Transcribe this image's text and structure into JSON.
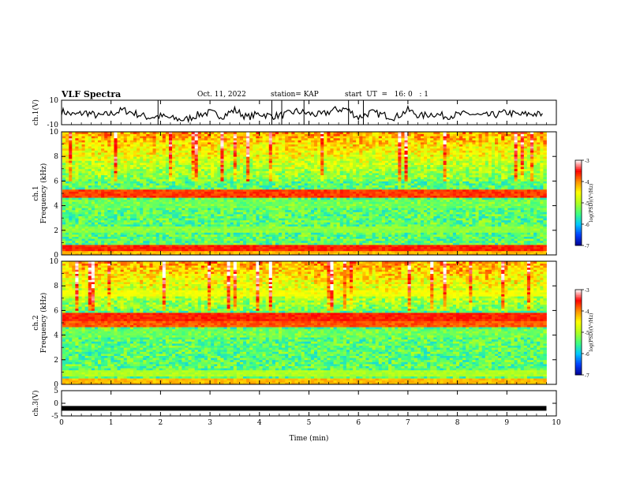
{
  "header": {
    "title": "VLF Spectra",
    "date": "Oct. 11, 2022",
    "station": "station= KAP",
    "start": "start  UT  =   16: 0   : 1"
  },
  "chart_data": [
    {
      "type": "line",
      "panel": "ch1-waveform",
      "ylabel": "ch.1(V)",
      "ylim": [
        -10,
        10
      ],
      "yticks": [
        "10",
        "-10"
      ],
      "xlim": [
        0,
        10
      ],
      "color": "#000000",
      "x": [
        0,
        0.25,
        0.5,
        0.75,
        1,
        1.25,
        1.5,
        1.75,
        2,
        2.25,
        2.5,
        2.75,
        3,
        3.25,
        3.5,
        3.75,
        4,
        4.25,
        4.5,
        4.75,
        5,
        5.25,
        5.5,
        5.75,
        6,
        6.25,
        6.5,
        6.75,
        7,
        7.25,
        7.5,
        7.75,
        8,
        8.25,
        8.5,
        8.75,
        9,
        9.25,
        9.5,
        9.75
      ],
      "y": [
        1,
        -2,
        0,
        -3,
        -1,
        2,
        -1,
        -4,
        -3,
        -5,
        -6,
        -2,
        0,
        -3,
        2,
        -4,
        -1,
        -3,
        -2,
        1,
        -1,
        -2,
        2,
        3,
        -4,
        0,
        -2,
        -4,
        2,
        -3,
        -1,
        -3,
        -2,
        -1,
        -3,
        -2,
        0,
        -2,
        -1,
        -2
      ]
    },
    {
      "type": "heatmap",
      "panel": "ch1-spectrogram",
      "ylabel": "ch.1\nFrequency (kHz)",
      "ylim": [
        0,
        10
      ],
      "yticks": [
        "0",
        "2",
        "4",
        "6",
        "8",
        "10"
      ],
      "xlim": [
        0,
        9.8
      ],
      "colorbar": {
        "label": "log(PSD)(V²/Hz)",
        "range": [
          -7,
          -3
        ],
        "ticks": [
          "-3",
          "-4",
          "-5",
          "-6",
          "-7"
        ],
        "colormap": [
          "#000090",
          "#0040ff",
          "#00c8ff",
          "#40ff80",
          "#b0ff20",
          "#ffff00",
          "#ff9000",
          "#ff0000",
          "#ffffff"
        ]
      },
      "bands_khz": [
        {
          "f": 0.2,
          "level": -4.2
        },
        {
          "f": 0.6,
          "level": -3.6
        },
        {
          "f": 2.1,
          "level": -5.2
        },
        {
          "f": 3.5,
          "level": -5.8
        },
        {
          "f": 4.2,
          "level": -5.4
        },
        {
          "f": 5.0,
          "level": -3.7
        },
        {
          "f": 6.5,
          "level": -5.6
        }
      ]
    },
    {
      "type": "heatmap",
      "panel": "ch2-spectrogram",
      "ylabel": "ch.2\nFrequency (kHz)",
      "ylim": [
        0,
        10
      ],
      "yticks": [
        "0",
        "2",
        "4",
        "6",
        "8",
        "10"
      ],
      "xlim": [
        0,
        9.8
      ],
      "colorbar": {
        "label": "log(PSD)(V²/Hz)",
        "range": [
          -7,
          -3
        ],
        "ticks": [
          "-3",
          "-4",
          "-5",
          "-6",
          "-7"
        ],
        "colormap": [
          "#000090",
          "#0040ff",
          "#00c8ff",
          "#40ff80",
          "#b0ff20",
          "#ffff00",
          "#ff9000",
          "#ff0000",
          "#ffffff"
        ]
      },
      "bands_khz": [
        {
          "f": 0.2,
          "level": -4.2
        },
        {
          "f": 0.9,
          "level": -5.0
        },
        {
          "f": 3.0,
          "level": -5.7
        },
        {
          "f": 4.2,
          "level": -5.4
        },
        {
          "f": 5.0,
          "level": -3.8
        },
        {
          "f": 5.5,
          "level": -3.6
        },
        {
          "f": 7.4,
          "level": -4.6
        }
      ]
    },
    {
      "type": "line",
      "panel": "ch3-waveform",
      "ylabel": "ch.3(V)",
      "ylim": [
        -5,
        5
      ],
      "yticks": [
        "5",
        "0",
        "-5"
      ],
      "xlim": [
        0,
        10
      ],
      "color": "#000000",
      "x": [
        0,
        9.8
      ],
      "y": [
        -2,
        -2
      ]
    }
  ],
  "xaxis": {
    "label": "Time  (min)",
    "range": [
      0,
      10
    ],
    "ticks": [
      "0",
      "1",
      "2",
      "3",
      "4",
      "5",
      "6",
      "7",
      "8",
      "9",
      "10"
    ]
  }
}
